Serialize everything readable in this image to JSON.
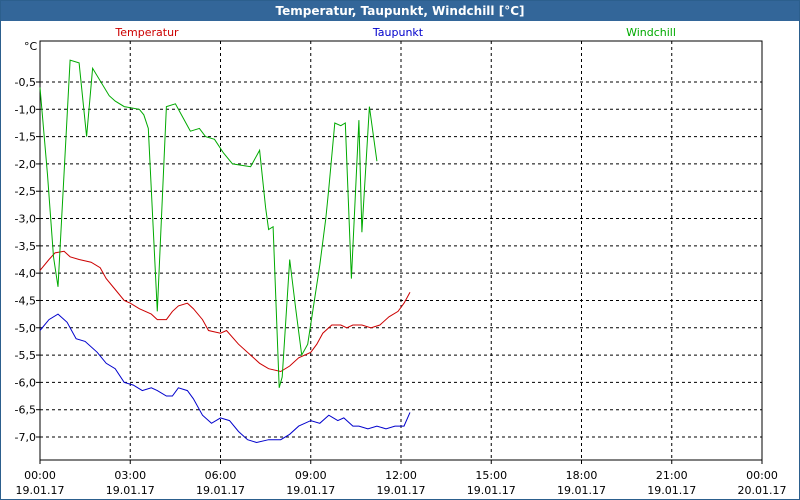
{
  "window": {
    "title": "Temperatur, Taupunkt, Windchill [°C]"
  },
  "chart_data": {
    "type": "line",
    "title": "Temperatur, Taupunkt, Windchill [°C]",
    "ylabel": "°C",
    "ylim": [
      -7.3,
      0.1
    ],
    "yticks": [
      -7.0,
      -6.5,
      -6.0,
      -5.5,
      -5.0,
      -4.5,
      -4.0,
      -3.5,
      -3.0,
      -2.5,
      -2.0,
      -1.5,
      -1.0,
      -0.5
    ],
    "ytick_labels": [
      "-7,0",
      "-6,5",
      "-6,0",
      "-5,5",
      "-5,0",
      "-4,5",
      "-4,0",
      "-3,5",
      "-3,0",
      "-2,5",
      "-2,0",
      "-1,5",
      "-1,0",
      "-0,5"
    ],
    "xlim": [
      0,
      24
    ],
    "xticks": [
      0,
      3,
      6,
      9,
      12,
      15,
      18,
      21,
      24
    ],
    "xtick_labels": [
      {
        "time": "00:00",
        "date": "19.01.17"
      },
      {
        "time": "03:00",
        "date": "19.01.17"
      },
      {
        "time": "06:00",
        "date": "19.01.17"
      },
      {
        "time": "09:00",
        "date": "19.01.17"
      },
      {
        "time": "12:00",
        "date": "19.01.17"
      },
      {
        "time": "15:00",
        "date": "19.01.17"
      },
      {
        "time": "18:00",
        "date": "19.01.17"
      },
      {
        "time": "21:00",
        "date": "19.01.17"
      },
      {
        "time": "00:00",
        "date": "20.01.17"
      }
    ],
    "grid": true,
    "legend_position": "top",
    "series": [
      {
        "name": "Temperatur",
        "color": "#cc0000",
        "points": [
          [
            0.0,
            -3.95
          ],
          [
            0.3,
            -3.75
          ],
          [
            0.5,
            -3.63
          ],
          [
            0.8,
            -3.6
          ],
          [
            1.0,
            -3.7
          ],
          [
            1.3,
            -3.75
          ],
          [
            1.7,
            -3.8
          ],
          [
            2.0,
            -3.9
          ],
          [
            2.2,
            -4.1
          ],
          [
            2.5,
            -4.3
          ],
          [
            2.8,
            -4.5
          ],
          [
            3.0,
            -4.55
          ],
          [
            3.3,
            -4.65
          ],
          [
            3.7,
            -4.75
          ],
          [
            3.9,
            -4.85
          ],
          [
            4.2,
            -4.85
          ],
          [
            4.4,
            -4.7
          ],
          [
            4.6,
            -4.6
          ],
          [
            4.9,
            -4.55
          ],
          [
            5.1,
            -4.65
          ],
          [
            5.4,
            -4.85
          ],
          [
            5.6,
            -5.05
          ],
          [
            6.0,
            -5.1
          ],
          [
            6.2,
            -5.05
          ],
          [
            6.6,
            -5.3
          ],
          [
            7.0,
            -5.5
          ],
          [
            7.3,
            -5.65
          ],
          [
            7.6,
            -5.75
          ],
          [
            8.0,
            -5.8
          ],
          [
            8.3,
            -5.7
          ],
          [
            8.6,
            -5.55
          ],
          [
            9.0,
            -5.45
          ],
          [
            9.2,
            -5.3
          ],
          [
            9.4,
            -5.1
          ],
          [
            9.7,
            -4.95
          ],
          [
            10.0,
            -4.95
          ],
          [
            10.2,
            -5.0
          ],
          [
            10.4,
            -4.95
          ],
          [
            10.7,
            -4.95
          ],
          [
            11.0,
            -5.0
          ],
          [
            11.3,
            -4.95
          ],
          [
            11.6,
            -4.8
          ],
          [
            11.9,
            -4.7
          ],
          [
            12.1,
            -4.55
          ],
          [
            12.3,
            -4.35
          ]
        ]
      },
      {
        "name": "Taupunkt",
        "color": "#0000cc",
        "points": [
          [
            0.0,
            -5.05
          ],
          [
            0.3,
            -4.85
          ],
          [
            0.6,
            -4.75
          ],
          [
            0.9,
            -4.9
          ],
          [
            1.2,
            -5.2
          ],
          [
            1.5,
            -5.25
          ],
          [
            1.9,
            -5.45
          ],
          [
            2.2,
            -5.65
          ],
          [
            2.5,
            -5.75
          ],
          [
            2.8,
            -6.0
          ],
          [
            3.1,
            -6.05
          ],
          [
            3.4,
            -6.15
          ],
          [
            3.7,
            -6.1
          ],
          [
            3.9,
            -6.15
          ],
          [
            4.2,
            -6.25
          ],
          [
            4.4,
            -6.25
          ],
          [
            4.6,
            -6.1
          ],
          [
            4.9,
            -6.15
          ],
          [
            5.1,
            -6.3
          ],
          [
            5.4,
            -6.6
          ],
          [
            5.7,
            -6.75
          ],
          [
            6.0,
            -6.65
          ],
          [
            6.3,
            -6.7
          ],
          [
            6.6,
            -6.9
          ],
          [
            6.9,
            -7.05
          ],
          [
            7.2,
            -7.1
          ],
          [
            7.6,
            -7.05
          ],
          [
            8.0,
            -7.05
          ],
          [
            8.3,
            -6.95
          ],
          [
            8.6,
            -6.8
          ],
          [
            9.0,
            -6.7
          ],
          [
            9.3,
            -6.75
          ],
          [
            9.6,
            -6.6
          ],
          [
            9.9,
            -6.7
          ],
          [
            10.1,
            -6.65
          ],
          [
            10.4,
            -6.8
          ],
          [
            10.6,
            -6.8
          ],
          [
            10.9,
            -6.85
          ],
          [
            11.2,
            -6.8
          ],
          [
            11.5,
            -6.85
          ],
          [
            11.8,
            -6.8
          ],
          [
            12.1,
            -6.8
          ],
          [
            12.3,
            -6.55
          ]
        ]
      },
      {
        "name": "Windchill",
        "color": "#00aa00",
        "points": [
          [
            0.0,
            -0.6
          ],
          [
            0.25,
            -2.2
          ],
          [
            0.45,
            -3.7
          ],
          [
            0.6,
            -4.25
          ],
          [
            1.0,
            -0.1
          ],
          [
            1.3,
            -0.15
          ],
          [
            1.55,
            -1.5
          ],
          [
            1.75,
            -0.25
          ],
          [
            2.3,
            -0.75
          ],
          [
            2.5,
            -0.85
          ],
          [
            2.8,
            -0.95
          ],
          [
            3.3,
            -1.0
          ],
          [
            3.45,
            -1.1
          ],
          [
            3.6,
            -1.35
          ],
          [
            3.9,
            -4.7
          ],
          [
            4.2,
            -0.95
          ],
          [
            4.5,
            -0.9
          ],
          [
            4.7,
            -1.1
          ],
          [
            5.0,
            -1.4
          ],
          [
            5.3,
            -1.35
          ],
          [
            5.5,
            -1.5
          ],
          [
            5.8,
            -1.55
          ],
          [
            6.1,
            -1.8
          ],
          [
            6.4,
            -2.0
          ],
          [
            7.0,
            -2.05
          ],
          [
            7.3,
            -1.75
          ],
          [
            7.5,
            -2.8
          ],
          [
            7.6,
            -3.2
          ],
          [
            7.75,
            -3.15
          ],
          [
            7.95,
            -6.1
          ],
          [
            8.05,
            -5.9
          ],
          [
            8.3,
            -3.75
          ],
          [
            8.5,
            -4.65
          ],
          [
            8.7,
            -5.5
          ],
          [
            8.9,
            -5.3
          ],
          [
            9.3,
            -3.85
          ],
          [
            9.5,
            -3.0
          ],
          [
            9.6,
            -2.45
          ],
          [
            9.8,
            -1.25
          ],
          [
            10.0,
            -1.3
          ],
          [
            10.15,
            -1.25
          ],
          [
            10.35,
            -4.1
          ],
          [
            10.6,
            -1.2
          ],
          [
            10.7,
            -3.25
          ],
          [
            10.95,
            -0.95
          ],
          [
            11.2,
            -1.95
          ]
        ]
      }
    ]
  }
}
